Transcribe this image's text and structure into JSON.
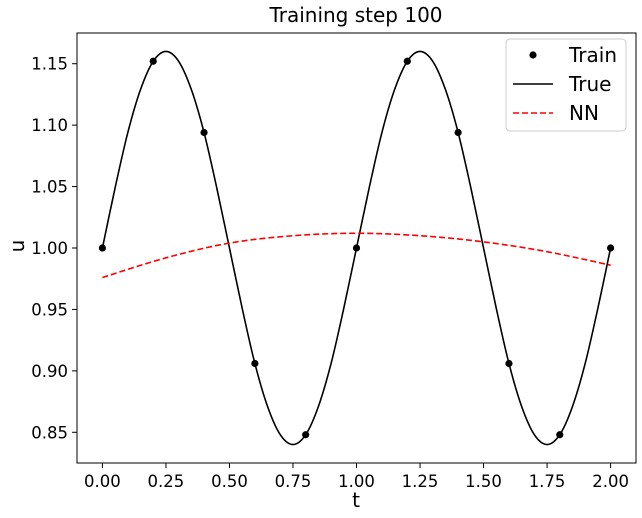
{
  "chart_data": {
    "type": "line",
    "title": "Training step 100",
    "xlabel": "t",
    "ylabel": "u",
    "xlim": [
      -0.1,
      2.1
    ],
    "ylim": [
      0.825,
      1.175
    ],
    "xticks": [
      0.0,
      0.25,
      0.5,
      0.75,
      1.0,
      1.25,
      1.5,
      1.75,
      2.0
    ],
    "xtick_labels": [
      "0.00",
      "0.25",
      "0.50",
      "0.75",
      "1.00",
      "1.25",
      "1.50",
      "1.75",
      "2.00"
    ],
    "yticks": [
      0.85,
      0.9,
      0.95,
      1.0,
      1.05,
      1.1,
      1.15
    ],
    "ytick_labels": [
      "0.85",
      "0.90",
      "0.95",
      "1.00",
      "1.05",
      "1.10",
      "1.15"
    ],
    "grid": false,
    "legend_position": "top-right",
    "series": [
      {
        "name": "Train",
        "style": "markers",
        "color": "#000000",
        "x": [
          0.0,
          0.2,
          0.4,
          0.6,
          0.8,
          1.0,
          1.2,
          1.4,
          1.6,
          1.8,
          2.0
        ],
        "y": [
          1.0,
          1.152,
          1.094,
          0.906,
          0.848,
          1.0,
          1.152,
          1.094,
          0.906,
          0.848,
          1.0
        ]
      },
      {
        "name": "True",
        "style": "solid",
        "color": "#000000",
        "x": [
          0.0,
          0.05,
          0.1,
          0.15,
          0.2,
          0.25,
          0.3,
          0.35,
          0.4,
          0.45,
          0.5,
          0.55,
          0.6,
          0.65,
          0.7,
          0.75,
          0.8,
          0.85,
          0.9,
          0.95,
          1.0,
          1.05,
          1.1,
          1.15,
          1.2,
          1.25,
          1.3,
          1.35,
          1.4,
          1.45,
          1.5,
          1.55,
          1.6,
          1.65,
          1.7,
          1.75,
          1.8,
          1.85,
          1.9,
          1.95,
          2.0
        ],
        "y": [
          1.0,
          1.049,
          1.094,
          1.129,
          1.152,
          1.16,
          1.152,
          1.129,
          1.094,
          1.049,
          1.0,
          0.951,
          0.906,
          0.871,
          0.848,
          0.84,
          0.848,
          0.871,
          0.906,
          0.951,
          1.0,
          1.049,
          1.094,
          1.129,
          1.152,
          1.16,
          1.152,
          1.129,
          1.094,
          1.049,
          1.0,
          0.951,
          0.906,
          0.871,
          0.848,
          0.84,
          0.848,
          0.871,
          0.906,
          0.951,
          1.0
        ]
      },
      {
        "name": "NN",
        "style": "dashed",
        "color": "#ff0000",
        "x": [
          0.0,
          0.25,
          0.5,
          0.75,
          1.0,
          1.25,
          1.5,
          1.75,
          2.0
        ],
        "y": [
          0.976,
          0.992,
          1.004,
          1.01,
          1.012,
          1.01,
          1.005,
          0.997,
          0.986
        ]
      }
    ]
  }
}
